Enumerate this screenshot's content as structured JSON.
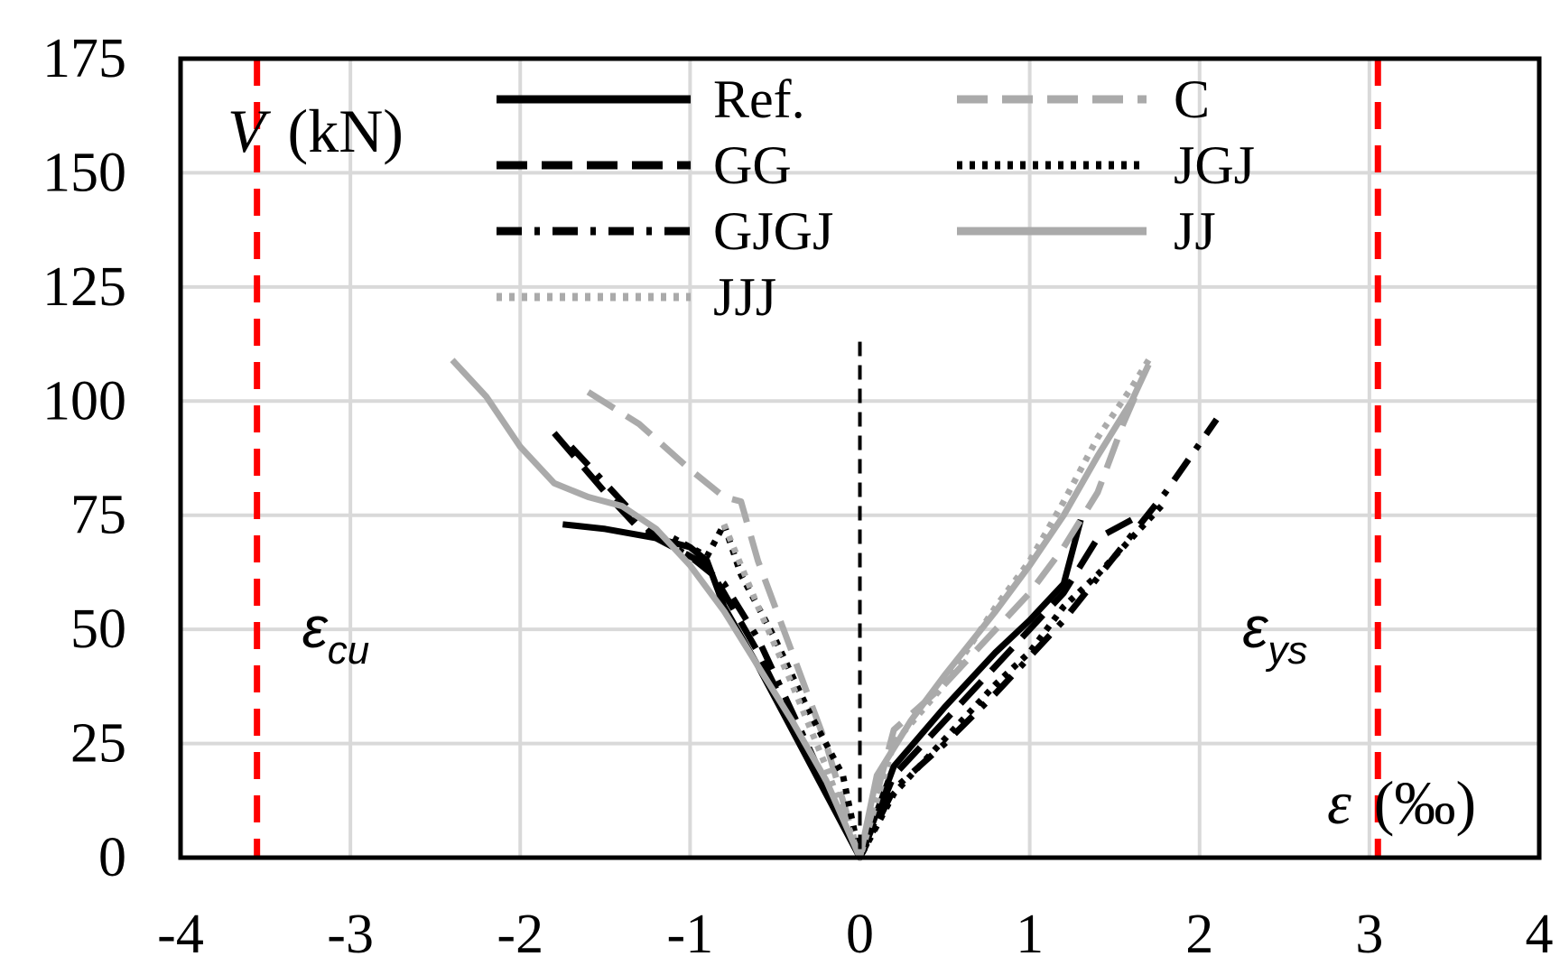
{
  "chart_data": {
    "type": "line",
    "xlim": [
      -4,
      4
    ],
    "ylim": [
      0,
      175
    ],
    "x_ticks": [
      "-4",
      "-3",
      "-2",
      "-1",
      "0",
      "1",
      "2",
      "3",
      "4"
    ],
    "y_ticks": [
      "0",
      "25",
      "50",
      "75",
      "100",
      "125",
      "150",
      "175"
    ],
    "ylabel_symbol": "V",
    "ylabel_unit": "(kN)",
    "xlabel_symbol": "ε",
    "xlabel_unit": "(‰)",
    "grid": true,
    "legend_placement": "top",
    "limits": [
      {
        "symbol": "ε",
        "subscript": "cu",
        "x": -3.55,
        "color": "#ff0000"
      },
      {
        "symbol": "ε",
        "subscript": "ys",
        "x": 3.05,
        "color": "#ff0000"
      }
    ],
    "series": [
      {
        "name": "Ref.",
        "style": "solid",
        "color": "#000000",
        "x": [
          -1.75,
          -1.5,
          -1.2,
          -1.0,
          -0.9,
          -0.8,
          -0.6,
          -0.4,
          -0.2,
          0,
          0.2,
          0.5,
          0.8,
          1.0,
          1.2,
          1.3
        ],
        "y": [
          73,
          72,
          70,
          68,
          65,
          55,
          42,
          28,
          14,
          0,
          20,
          33,
          45,
          52,
          60,
          74
        ]
      },
      {
        "name": "C",
        "style": "dash",
        "color": "#aaaaaa",
        "x": [
          -1.6,
          -1.3,
          -1.0,
          -0.8,
          -0.7,
          -0.6,
          -0.4,
          -0.2,
          0,
          0.2,
          0.5,
          0.8,
          1.0,
          1.2,
          1.4,
          1.55,
          1.62
        ],
        "y": [
          102,
          95,
          85,
          79,
          78,
          65,
          45,
          25,
          0,
          28,
          38,
          50,
          58,
          68,
          80,
          95,
          101
        ]
      },
      {
        "name": "GG",
        "style": "dash",
        "color": "#000000",
        "x": [
          -1.8,
          -1.5,
          -1.3,
          -1.1,
          -0.9,
          -0.8,
          -0.6,
          -0.4,
          -0.2,
          0,
          0.2,
          0.5,
          0.8,
          1.0,
          1.2,
          1.4,
          1.6
        ],
        "y": [
          93,
          80,
          72,
          68,
          64,
          58,
          45,
          30,
          15,
          0,
          18,
          30,
          42,
          50,
          58,
          70,
          74
        ]
      },
      {
        "name": "JGJ",
        "style": "dot",
        "color": "#000000",
        "x": [
          -1.1,
          -0.9,
          -0.8,
          -0.7,
          -0.5,
          -0.3,
          -0.1,
          0,
          0.2,
          0.5,
          0.8,
          1.0,
          1.2,
          1.4,
          1.6,
          1.8
        ],
        "y": [
          70,
          66,
          73,
          62,
          48,
          32,
          18,
          0,
          14,
          26,
          38,
          45,
          55,
          62,
          70,
          78
        ]
      },
      {
        "name": "GJGJ",
        "style": "dashdot",
        "color": "#000000",
        "x": [
          -1.7,
          -1.4,
          -1.2,
          -1.0,
          -0.8,
          -0.6,
          -0.4,
          -0.2,
          0,
          0.2,
          0.5,
          0.8,
          1.0,
          1.2,
          1.5,
          1.8,
          2.1
        ],
        "y": [
          90,
          78,
          70,
          66,
          60,
          48,
          32,
          16,
          0,
          15,
          25,
          36,
          44,
          52,
          66,
          80,
          96
        ]
      },
      {
        "name": "JJ",
        "style": "solid",
        "color": "#aaaaaa",
        "x": [
          -2.4,
          -2.2,
          -2.0,
          -1.8,
          -1.6,
          -1.4,
          -1.2,
          -1.0,
          -0.8,
          -0.6,
          -0.4,
          -0.2,
          0,
          0.1,
          0.3,
          0.5,
          0.8,
          1.0,
          1.2,
          1.4,
          1.6,
          1.7
        ],
        "y": [
          109,
          101,
          90,
          82,
          79,
          77,
          72,
          64,
          54,
          42,
          30,
          17,
          0,
          18,
          30,
          40,
          54,
          64,
          75,
          88,
          100,
          108
        ]
      },
      {
        "name": "JJJ",
        "style": "dot",
        "color": "#aaaaaa",
        "x": [
          -0.8,
          -0.6,
          -0.4,
          -0.2,
          0,
          0.2,
          0.5,
          0.8,
          1.0,
          1.2,
          1.4,
          1.6,
          1.7
        ],
        "y": [
          73,
          55,
          38,
          20,
          0,
          25,
          38,
          55,
          65,
          78,
          92,
          103,
          109
        ]
      }
    ]
  }
}
